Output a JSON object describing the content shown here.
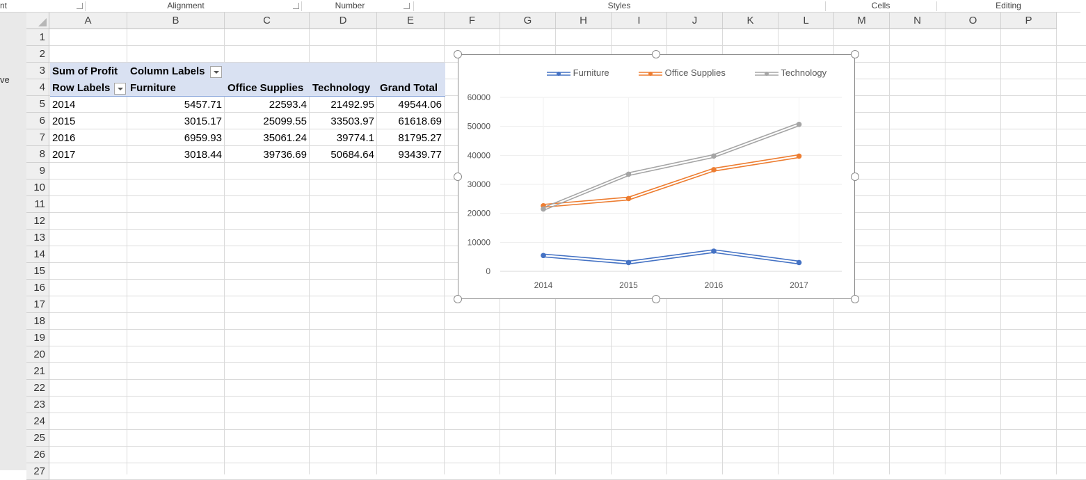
{
  "ribbon": {
    "groups": [
      "nt",
      "Alignment",
      "Number",
      "Styles",
      "Cells",
      "Editing"
    ]
  },
  "left_pane": {
    "text": "ve"
  },
  "columns": [
    "A",
    "B",
    "C",
    "D",
    "E",
    "F",
    "G",
    "H",
    "I",
    "J",
    "K",
    "L",
    "M",
    "N",
    "O",
    "P"
  ],
  "rows": [
    "1",
    "2",
    "3",
    "4",
    "5",
    "6",
    "7",
    "8",
    "9",
    "10",
    "11",
    "12",
    "13",
    "14",
    "15",
    "16",
    "17",
    "18",
    "19",
    "20",
    "21",
    "22",
    "23",
    "24",
    "25",
    "26",
    "27"
  ],
  "pivot": {
    "value_label": "Sum of Profit",
    "column_labels": "Column Labels",
    "row_labels": "Row Labels",
    "headers": [
      "Furniture",
      "Office Supplies",
      "Technology",
      "Grand Total"
    ],
    "data": [
      [
        "2014",
        "5457.71",
        "22593.4",
        "21492.95",
        "49544.06"
      ],
      [
        "2015",
        "3015.17",
        "25099.55",
        "33503.97",
        "61618.69"
      ],
      [
        "2016",
        "6959.93",
        "35061.24",
        "39774.1",
        "81795.27"
      ],
      [
        "2017",
        "3018.44",
        "39736.69",
        "50684.64",
        "93439.77"
      ]
    ]
  },
  "chart_data": {
    "type": "line",
    "x": [
      "2014",
      "2015",
      "2016",
      "2017"
    ],
    "series": [
      {
        "name": "Furniture",
        "color": "#4472c4",
        "values": [
          5457.71,
          3015.17,
          6959.93,
          3018.44
        ]
      },
      {
        "name": "Office Supplies",
        "color": "#ed7d31",
        "values": [
          22593.4,
          25099.55,
          35061.24,
          39736.69
        ]
      },
      {
        "name": "Technology",
        "color": "#a5a5a5",
        "values": [
          21492.95,
          33503.97,
          39774.1,
          50684.64
        ]
      }
    ],
    "ylim": [
      0,
      60000
    ],
    "yticks": [
      "0",
      "10000",
      "20000",
      "30000",
      "40000",
      "50000",
      "60000"
    ],
    "grid": true,
    "legend_position": "top"
  }
}
